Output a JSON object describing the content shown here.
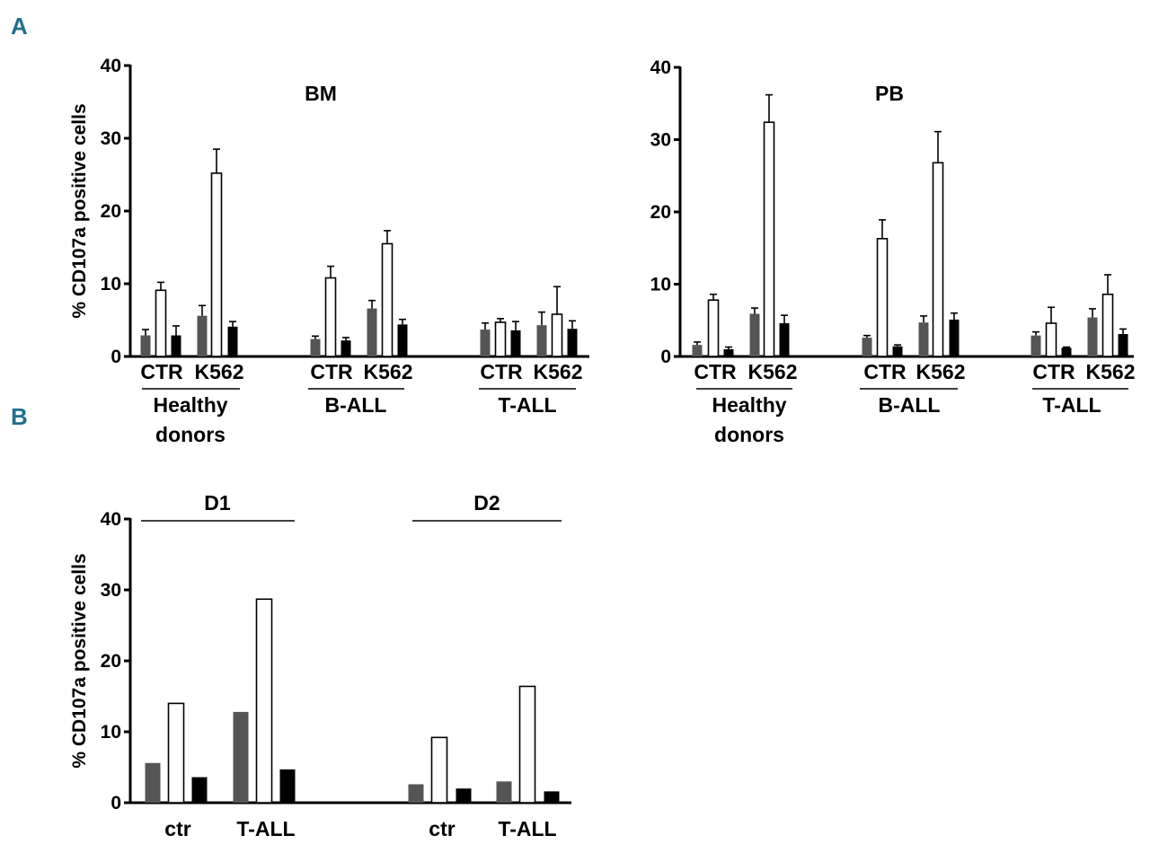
{
  "panels": [
    "A",
    "B"
  ],
  "colors": {
    "series1": "#555555",
    "series2": "#ffffff",
    "series3": "#000000",
    "panel_letter": "#1f6f8b"
  },
  "chart_data": [
    {
      "type": "bar",
      "panel": "A",
      "title": "BM",
      "ylabel": "% CD107a positive cells",
      "ylim": [
        0,
        40
      ],
      "yticks": [
        "0",
        "10",
        "20",
        "30",
        "40"
      ],
      "groups": [
        "Healthy donors",
        "B-ALL",
        "T-ALL"
      ],
      "group_label_lines": [
        [
          "Healthy",
          "donors"
        ],
        [
          "B-ALL"
        ],
        [
          "T-ALL"
        ]
      ],
      "categories": [
        "CTR",
        "K562",
        "CTR",
        "K562",
        "CTR",
        "K562"
      ],
      "series": [
        {
          "name": "grey",
          "values": [
            2.9,
            5.6,
            2.4,
            6.6,
            3.7,
            4.3
          ],
          "errors": [
            0.8,
            1.4,
            0.4,
            1.1,
            0.9,
            1.8
          ]
        },
        {
          "name": "white",
          "values": [
            9.1,
            25.2,
            10.8,
            15.5,
            4.7,
            5.8
          ],
          "errors": [
            1.1,
            3.3,
            1.6,
            1.8,
            0.5,
            3.8
          ]
        },
        {
          "name": "black",
          "values": [
            2.9,
            4.1,
            2.2,
            4.4,
            3.6,
            3.8
          ],
          "errors": [
            1.3,
            0.7,
            0.4,
            0.7,
            1.2,
            1.1
          ]
        }
      ]
    },
    {
      "type": "bar",
      "panel": "A",
      "title": "PB",
      "ylabel": "",
      "ylim": [
        0,
        40
      ],
      "yticks": [
        "0",
        "10",
        "20",
        "30",
        "40"
      ],
      "groups": [
        "Healthy donors",
        "B-ALL",
        "T-ALL"
      ],
      "group_label_lines": [
        [
          "Healthy",
          "donors"
        ],
        [
          "B-ALL"
        ],
        [
          "T-ALL"
        ]
      ],
      "categories": [
        "CTR",
        "K562",
        "CTR",
        "K562",
        "CTR",
        "K562"
      ],
      "series": [
        {
          "name": "grey",
          "values": [
            1.6,
            5.9,
            2.6,
            4.7,
            2.9,
            5.4
          ],
          "errors": [
            0.4,
            0.8,
            0.3,
            0.9,
            0.5,
            1.2
          ]
        },
        {
          "name": "white",
          "values": [
            7.8,
            32.4,
            16.3,
            26.8,
            4.6,
            8.6
          ],
          "errors": [
            0.8,
            3.8,
            2.6,
            4.3,
            2.2,
            2.7
          ]
        },
        {
          "name": "black",
          "values": [
            1.0,
            4.6,
            1.4,
            5.1,
            1.2,
            3.1
          ],
          "errors": [
            0.3,
            1.1,
            0.2,
            0.9,
            0.1,
            0.7
          ]
        }
      ]
    },
    {
      "type": "bar",
      "panel": "B",
      "title": "",
      "ylabel": "% CD107a positive cells",
      "ylim": [
        0,
        40
      ],
      "yticks": [
        "0",
        "10",
        "20",
        "30",
        "40"
      ],
      "groups": [
        "D1",
        "D2"
      ],
      "categories": [
        "ctr",
        "T-ALL",
        "ctr",
        "T-ALL"
      ],
      "series": [
        {
          "name": "grey",
          "values": [
            5.6,
            12.8,
            2.6,
            3.0
          ]
        },
        {
          "name": "white",
          "values": [
            14.0,
            28.7,
            9.2,
            16.4
          ]
        },
        {
          "name": "black",
          "values": [
            3.6,
            4.7,
            2.0,
            1.6
          ]
        }
      ]
    }
  ]
}
